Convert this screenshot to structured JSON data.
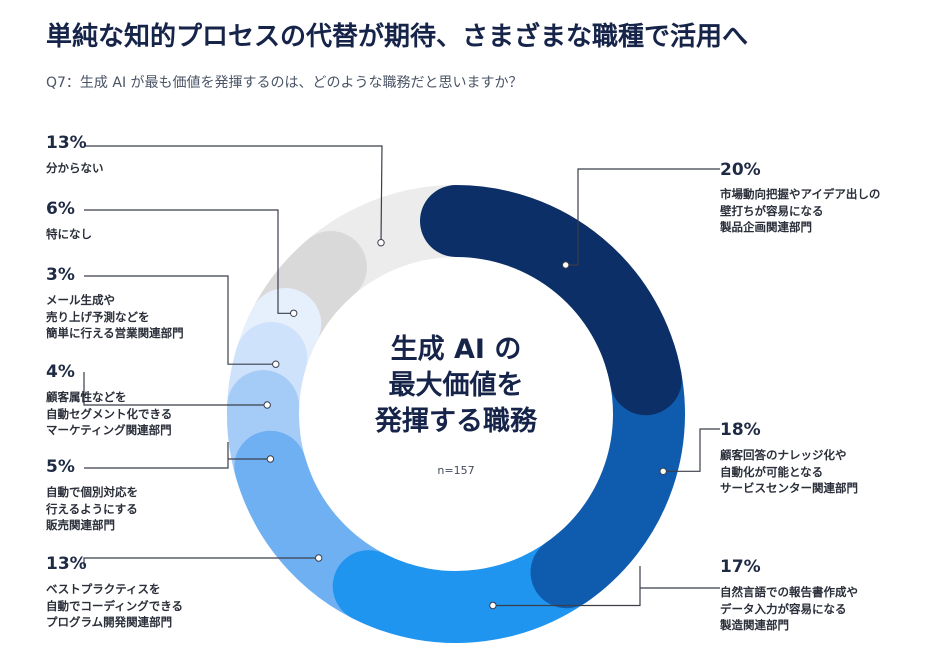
{
  "title": "単純な知的プロセスの代替が期待、さまざまな職種で活用へ",
  "subtitle": "Q7：生成 AI が最も価値を発揮するのは、どのような職務だと思いますか？",
  "chart_data": {
    "type": "pie",
    "center_label": "生成 AI の\n最大価値を\n発揮する職務",
    "n_label": "n=157",
    "start": "top",
    "direction": "clockwise",
    "slices": [
      {
        "pct_label": "20%",
        "value": 20,
        "label": "市場動向把握やアイデア出しの\n壁打ちが容易になる\n製品企画関連部門",
        "color": "#0b2f66"
      },
      {
        "pct_label": "18%",
        "value": 18,
        "label": "顧客回答のナレッジ化や\n自動化が可能となる\nサービスセンター関連部門",
        "color": "#0f5cae"
      },
      {
        "pct_label": "17%",
        "value": 17,
        "label": "自然言語での報告書作成や\nデータ入力が容易になる\n製造関連部門",
        "color": "#1f95f0"
      },
      {
        "pct_label": "13%",
        "value": 13,
        "label": "ベストプラクティスを\n自動でコーディングできる\nプログラム開発関連部門",
        "color": "#6fb0f3"
      },
      {
        "pct_label": "5%",
        "value": 5,
        "label": "自動で個別対応を\n行えるようにする\n販売関連部門",
        "color": "#a5cbf7"
      },
      {
        "pct_label": "4%",
        "value": 4,
        "label": "顧客属性などを\n自動セグメント化できる\nマーケティング関連部門",
        "color": "#cfe2fb"
      },
      {
        "pct_label": "3%",
        "value": 3,
        "label": "メール生成や\n売り上げ予測などを\n簡単に行える営業関連部門",
        "color": "#e6f0fd"
      },
      {
        "pct_label": "6%",
        "value": 6,
        "label": "特になし",
        "color": "#d9d9d9"
      },
      {
        "pct_label": "13%",
        "value": 13,
        "label": "分からない",
        "color": "#ececec"
      }
    ]
  }
}
